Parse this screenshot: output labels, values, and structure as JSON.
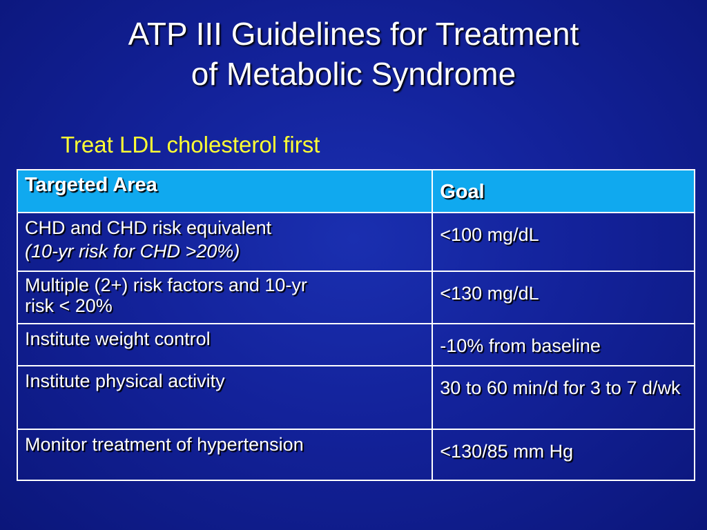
{
  "title": {
    "line1": "ATP III Guidelines for Treatment",
    "line2": "of Metabolic Syndrome"
  },
  "subtitle": "Treat LDL cholesterol first",
  "table": {
    "headers": {
      "area": "Targeted Area",
      "goal": "Goal"
    },
    "rows": [
      {
        "area": "CHD and CHD risk equivalent",
        "area_note": "(10-yr risk for CHD >20%)",
        "goal": "<100 mg/dL"
      },
      {
        "area_line1": "Multiple (2+) risk factors and 10-yr",
        "area_line2": "risk < 20%",
        "goal": "<130 mg/dL"
      },
      {
        "area": "Institute weight control",
        "goal": "-10% from baseline"
      },
      {
        "area": "Institute physical activity",
        "goal": "30 to 60 min/d for 3 to 7 d/wk"
      },
      {
        "area": "Monitor treatment of hypertension",
        "goal": "<130/85 mm Hg"
      }
    ]
  },
  "colors": {
    "background": "#13229a",
    "header_fill": "#10a9ef",
    "subtitle_text": "#ffff33",
    "text": "#ffffff"
  }
}
